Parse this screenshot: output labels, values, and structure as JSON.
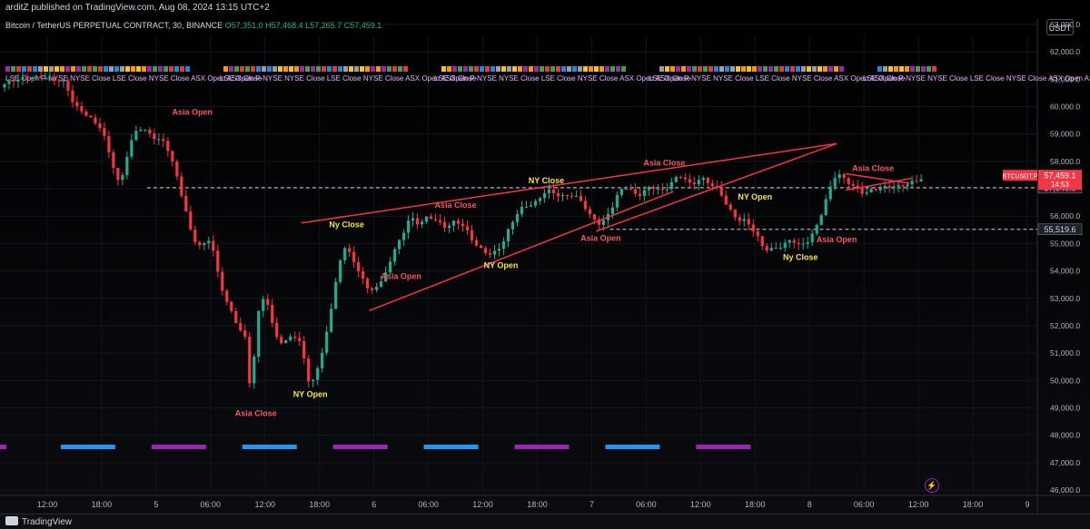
{
  "header": {
    "publisher": "arditZ published on TradingView.com, Aug 08, 2024 13:15 UTC+2",
    "symbol": "Bitcoin / TetherUS PERPETUAL CONTRACT, 30, BINANCE",
    "ohlc": "O57,351.0  H57,468.4  L57,265.7  C57,459.1",
    "currency": "USDT"
  },
  "footer": {
    "logo_text": "TradingView"
  },
  "colors": {
    "up": "#22ab94",
    "down": "#f23645",
    "line": "#f23645",
    "label_yellow": "#f5e24c",
    "label_red": "#f0595f",
    "blue": "#2196f3",
    "purple": "#9c27b0"
  },
  "chart_data": {
    "type": "candlestick",
    "y_axis": {
      "min": 46000,
      "max": 63000,
      "step": 1000,
      "tick_labels": [
        "46,000.0",
        "47,000.0",
        "48,000.0",
        "49,000.0",
        "50,000.0",
        "51,000.0",
        "52,000.0",
        "53,000.0",
        "54,000.0",
        "55,000.0",
        "56,000.0",
        "57,000.0",
        "58,000.0",
        "59,000.0",
        "60,000.0",
        "61,000.0",
        "62,000.0",
        "63,000.0"
      ]
    },
    "x_axis": {
      "tick_labels": [
        "12:00",
        "18:00",
        "5",
        "06:00",
        "12:00",
        "18:00",
        "6",
        "06:00",
        "12:00",
        "18:00",
        "7",
        "06:00",
        "12:00",
        "18:00",
        "8",
        "06:00",
        "12:00",
        "18:00",
        "9"
      ],
      "tick_hours": [
        12,
        18,
        24,
        30,
        36,
        42,
        48,
        54,
        60,
        66,
        72,
        78,
        84,
        90,
        96,
        102,
        108,
        114,
        120
      ],
      "start_hour": 6.8,
      "end_hour": 120
    },
    "price_path_keypoints": [
      [
        6.8,
        60700
      ],
      [
        8,
        60850
      ],
      [
        10,
        60950
      ],
      [
        12,
        61000
      ],
      [
        14,
        60900
      ],
      [
        15,
        60100
      ],
      [
        16,
        59900
      ],
      [
        18,
        59300
      ],
      [
        19,
        58200
      ],
      [
        20,
        57100
      ],
      [
        21,
        58500
      ],
      [
        22,
        59200
      ],
      [
        23,
        59000
      ],
      [
        24,
        58700
      ],
      [
        25,
        58600
      ],
      [
        26,
        57700
      ],
      [
        27,
        56500
      ],
      [
        28,
        55200
      ],
      [
        29,
        54900
      ],
      [
        30,
        55300
      ],
      [
        31,
        53700
      ],
      [
        32,
        52800
      ],
      [
        33,
        52100
      ],
      [
        34,
        51500
      ],
      [
        34.5,
        49000
      ],
      [
        35,
        52200
      ],
      [
        36,
        53200
      ],
      [
        37,
        51700
      ],
      [
        38,
        51200
      ],
      [
        39,
        51600
      ],
      [
        40,
        51200
      ],
      [
        41,
        49600
      ],
      [
        42,
        50600
      ],
      [
        43,
        52000
      ],
      [
        44,
        54100
      ],
      [
        45,
        55100
      ],
      [
        46,
        54200
      ],
      [
        47,
        53800
      ],
      [
        47.5,
        53200
      ],
      [
        48,
        53500
      ],
      [
        49,
        53700
      ],
      [
        50,
        54600
      ],
      [
        51,
        55200
      ],
      [
        52,
        55900
      ],
      [
        53,
        55600
      ],
      [
        54,
        55900
      ],
      [
        55,
        55700
      ],
      [
        56,
        55500
      ],
      [
        57,
        55800
      ],
      [
        58,
        55600
      ],
      [
        59,
        55100
      ],
      [
        60,
        54800
      ],
      [
        61,
        54700
      ],
      [
        62,
        55000
      ],
      [
        63,
        55700
      ],
      [
        64,
        56300
      ],
      [
        65,
        56400
      ],
      [
        66,
        56500
      ],
      [
        67,
        56900
      ],
      [
        68,
        56700
      ],
      [
        69,
        56600
      ],
      [
        70,
        56700
      ],
      [
        71,
        56400
      ],
      [
        72,
        55900
      ],
      [
        73,
        55700
      ],
      [
        74,
        56200
      ],
      [
        75,
        57000
      ],
      [
        76,
        57200
      ],
      [
        77,
        56800
      ],
      [
        78,
        57100
      ],
      [
        79,
        57100
      ],
      [
        80,
        56900
      ],
      [
        81,
        57300
      ],
      [
        82,
        57400
      ],
      [
        83,
        57000
      ],
      [
        84,
        57300
      ],
      [
        85,
        57100
      ],
      [
        86,
        56900
      ],
      [
        87,
        56300
      ],
      [
        88,
        55900
      ],
      [
        89,
        55900
      ],
      [
        90,
        55500
      ],
      [
        91,
        54900
      ],
      [
        92,
        54900
      ],
      [
        93,
        55000
      ],
      [
        94,
        55200
      ],
      [
        95,
        54900
      ],
      [
        96,
        55100
      ],
      [
        97,
        55700
      ],
      [
        98,
        56700
      ],
      [
        99,
        57500
      ],
      [
        100,
        57200
      ],
      [
        101,
        57000
      ],
      [
        102,
        56800
      ],
      [
        103,
        57000
      ],
      [
        104,
        57100
      ],
      [
        105,
        57200
      ],
      [
        106,
        57200
      ],
      [
        107,
        57300
      ],
      [
        108,
        57400
      ],
      [
        108.5,
        57460
      ]
    ],
    "price_levels": [
      {
        "price": 57040,
        "label": "57,040.0",
        "x_from_hour": 23,
        "style": "dashed"
      },
      {
        "price": 55519.6,
        "label": "55,519.6",
        "x_from_hour": 74,
        "style": "dashed"
      }
    ],
    "current_price": {
      "symbol": "BTCUSDT.P",
      "price": "57,459.1",
      "countdown": "14:53",
      "value": 57459.1
    },
    "trend_lines": [
      {
        "from": [
          40,
          55750
        ],
        "to": [
          99,
          58650
        ]
      },
      {
        "from": [
          47.5,
          52550
        ],
        "to": [
          81,
          56900
        ]
      },
      {
        "from": [
          72.5,
          55450
        ],
        "to": [
          99,
          58650
        ]
      },
      {
        "from": [
          100,
          57550
        ],
        "to": [
          107,
          57200
        ]
      },
      {
        "from": [
          100,
          56950
        ],
        "to": [
          107.2,
          57380
        ]
      }
    ],
    "annotations": [
      {
        "text": "Asia Open",
        "x_hour": 28,
        "price": 59700,
        "color": "red"
      },
      {
        "text": "Asia Close",
        "x_hour": 35,
        "price": 48700,
        "color": "red"
      },
      {
        "text": "NY Open",
        "x_hour": 41,
        "price": 49400,
        "color": "yellow"
      },
      {
        "text": "Ny Close",
        "x_hour": 45,
        "price": 55600,
        "color": "yellow"
      },
      {
        "text": "Asia Open",
        "x_hour": 51,
        "price": 53700,
        "color": "red"
      },
      {
        "text": "Asia Close",
        "x_hour": 57,
        "price": 56300,
        "color": "red"
      },
      {
        "text": "NY Open",
        "x_hour": 62,
        "price": 54100,
        "color": "yellow"
      },
      {
        "text": "NY Close",
        "x_hour": 67,
        "price": 57200,
        "color": "yellow"
      },
      {
        "text": "Asia Open",
        "x_hour": 73,
        "price": 55100,
        "color": "red"
      },
      {
        "text": "Asia Close",
        "x_hour": 80,
        "price": 57850,
        "color": "red"
      },
      {
        "text": "NY Open",
        "x_hour": 90,
        "price": 56600,
        "color": "yellow"
      },
      {
        "text": "Ny Close",
        "x_hour": 95,
        "price": 54400,
        "color": "yellow"
      },
      {
        "text": "Asia Open",
        "x_hour": 99,
        "price": 55050,
        "color": "red"
      },
      {
        "text": "Asia Close",
        "x_hour": 103,
        "price": 57650,
        "color": "red"
      }
    ],
    "session_strip_text": "LSE Open  P-NYSE NYSE Close  LSE Close  NYSE Close  ASX Open  ASX Close",
    "session_blocks": [
      {
        "x_from_hour": 6,
        "x_to_hour": 7.5,
        "color": "purple"
      },
      {
        "x_from_hour": 13.5,
        "x_to_hour": 19.5,
        "color": "blue"
      },
      {
        "x_from_hour": 23.5,
        "x_to_hour": 29.5,
        "color": "purple"
      },
      {
        "x_from_hour": 33.5,
        "x_to_hour": 39.5,
        "color": "blue"
      },
      {
        "x_from_hour": 43.5,
        "x_to_hour": 49.5,
        "color": "purple"
      },
      {
        "x_from_hour": 53.5,
        "x_to_hour": 59.5,
        "color": "blue"
      },
      {
        "x_from_hour": 63.5,
        "x_to_hour": 69.5,
        "color": "purple"
      },
      {
        "x_from_hour": 73.5,
        "x_to_hour": 79.5,
        "color": "blue"
      },
      {
        "x_from_hour": 83.5,
        "x_to_hour": 89.5,
        "color": "purple"
      }
    ],
    "grid": true,
    "legend": "none"
  }
}
